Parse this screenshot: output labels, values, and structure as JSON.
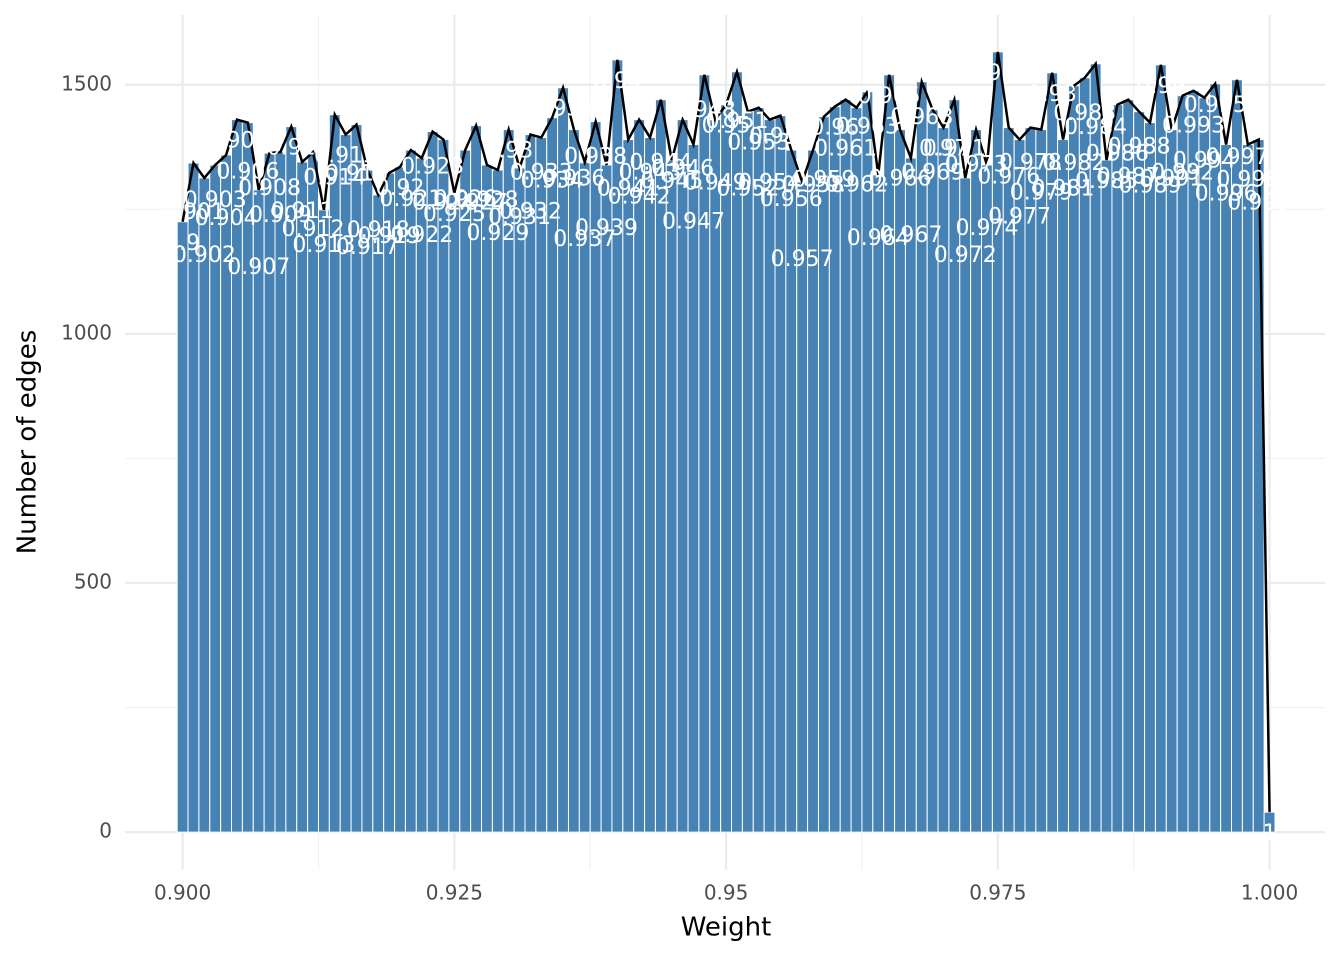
{
  "chart_data": {
    "type": "bar",
    "x_label": "Weight",
    "y_label": "Number of edges",
    "x": [
      0.9,
      0.901,
      0.902,
      0.903,
      0.904,
      0.905,
      0.906,
      0.907,
      0.908,
      0.909,
      0.91,
      0.911,
      0.912,
      0.913,
      0.914,
      0.915,
      0.916,
      0.917,
      0.918,
      0.919,
      0.92,
      0.921,
      0.922,
      0.923,
      0.924,
      0.925,
      0.926,
      0.927,
      0.928,
      0.929,
      0.93,
      0.931,
      0.932,
      0.933,
      0.934,
      0.935,
      0.936,
      0.937,
      0.938,
      0.939,
      0.94,
      0.941,
      0.942,
      0.943,
      0.944,
      0.945,
      0.946,
      0.947,
      0.948,
      0.949,
      0.95,
      0.951,
      0.952,
      0.953,
      0.954,
      0.955,
      0.956,
      0.957,
      0.958,
      0.959,
      0.96,
      0.961,
      0.962,
      0.963,
      0.964,
      0.965,
      0.966,
      0.967,
      0.968,
      0.969,
      0.97,
      0.971,
      0.972,
      0.973,
      0.974,
      0.975,
      0.976,
      0.977,
      0.978,
      0.979,
      0.98,
      0.981,
      0.982,
      0.983,
      0.984,
      0.985,
      0.986,
      0.987,
      0.988,
      0.989,
      0.99,
      0.991,
      0.992,
      0.993,
      0.994,
      0.995,
      0.996,
      0.997,
      0.998,
      0.999,
      1.0
    ],
    "values": [
      1225,
      1343,
      1313,
      1339,
      1359,
      1430,
      1424,
      1289,
      1363,
      1365,
      1416,
      1345,
      1365,
      1249,
      1440,
      1400,
      1420,
      1329,
      1279,
      1323,
      1335,
      1369,
      1353,
      1406,
      1390,
      1283,
      1369,
      1418,
      1339,
      1329,
      1410,
      1333,
      1400,
      1394,
      1434,
      1494,
      1410,
      1345,
      1426,
      1339,
      1550,
      1390,
      1430,
      1394,
      1470,
      1349,
      1430,
      1380,
      1520,
      1430,
      1460,
      1526,
      1446,
      1454,
      1430,
      1438,
      1369,
      1305,
      1369,
      1436,
      1456,
      1470,
      1454,
      1486,
      1319,
      1520,
      1410,
      1353,
      1506,
      1450,
      1414,
      1470,
      1313,
      1410,
      1339,
      1566,
      1414,
      1390,
      1414,
      1410,
      1524,
      1390,
      1498,
      1514,
      1542,
      1349,
      1460,
      1470,
      1446,
      1424,
      1540,
      1410,
      1478,
      1488,
      1474,
      1502,
      1380,
      1510,
      1380,
      1390,
      40
    ],
    "point_labels": [
      "0.9",
      "0.901",
      "0.902",
      "0.903",
      "0.904",
      "0.905",
      "0.906",
      "0.907",
      "0.908",
      "0.909",
      "0.91",
      "0.911",
      "0.912",
      "0.913",
      "0.914",
      "0.915",
      "0.916",
      "0.917",
      "0.918",
      "0.919",
      "0.92",
      "0.921",
      "0.922",
      "0.923",
      "0.924",
      "0.925",
      "0.926",
      "0.927",
      "0.928",
      "0.929",
      "0.93",
      "0.931",
      "0.932",
      "0.933",
      "0.934",
      "0.935",
      "0.936",
      "0.937",
      "0.938",
      "0.939",
      "0.94",
      "0.941",
      "0.942",
      "0.943",
      "0.944",
      "0.945",
      "0.946",
      "0.947",
      "0.948",
      "0.949",
      "0.95",
      "0.951",
      "0.952",
      "0.953",
      "0.954",
      "0.955",
      "0.956",
      "0.957",
      "0.958",
      "0.959",
      "0.96",
      "0.961",
      "0.962",
      "0.963",
      "0.964",
      "0.965",
      "0.966",
      "0.967",
      "0.968",
      "0.969",
      "0.97",
      "0.971",
      "0.972",
      "0.973",
      "0.974",
      "0.975",
      "0.976",
      "0.977",
      "0.978",
      "0.979",
      "0.98",
      "0.981",
      "0.982",
      "0.983",
      "0.984",
      "0.985",
      "0.986",
      "0.987",
      "0.988",
      "0.989",
      "0.99",
      "0.991",
      "0.992",
      "0.993",
      "0.994",
      "0.995",
      "0.996",
      "0.997",
      "0.998",
      "0.999",
      "1"
    ],
    "color": "#4682b4",
    "line_color": "#000000",
    "xlim": [
      0.8947,
      1.0051
    ],
    "ylim": [
      -76,
      1640
    ],
    "xticks": [
      {
        "value": 0.9,
        "label": "0.900"
      },
      0.925,
      0.95,
      0.975,
      {
        "value": 1.0,
        "label": "1.000"
      }
    ],
    "yticks": [
      0,
      500,
      1000,
      1500
    ],
    "x_minor_grid": [
      0.9125,
      0.9375,
      0.9625,
      0.9875
    ],
    "y_minor_grid": [
      250,
      750,
      1250
    ],
    "grid": true
  }
}
